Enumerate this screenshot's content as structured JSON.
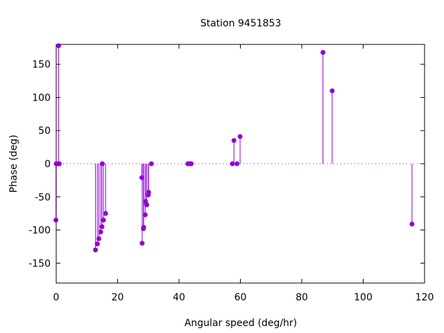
{
  "chart_data": {
    "type": "scatter",
    "style": "impulses-with-points",
    "title": "Station 9451853",
    "xlabel": "Angular speed (deg/hr)",
    "ylabel": "Phase (deg)",
    "xlim": [
      0,
      120
    ],
    "ylim": [
      -180,
      180
    ],
    "xticks": [
      0,
      20,
      40,
      60,
      80,
      100,
      120
    ],
    "yticks": [
      -150,
      -100,
      -50,
      0,
      50,
      100,
      150
    ],
    "zero_line": true,
    "grid": false,
    "color": "#9400d3",
    "series": [
      {
        "points": [
          {
            "x": -0.1,
            "y": -85
          },
          {
            "x": 0.0,
            "y": 0
          },
          {
            "x": 0.6,
            "y": 0
          },
          {
            "x": 0.8,
            "y": 178
          },
          {
            "x": 1.0,
            "y": 0
          },
          {
            "x": 12.8,
            "y": -130
          },
          {
            "x": 13.4,
            "y": -121
          },
          {
            "x": 13.9,
            "y": -113
          },
          {
            "x": 14.5,
            "y": -103
          },
          {
            "x": 14.9,
            "y": -95
          },
          {
            "x": 15.0,
            "y": 0
          },
          {
            "x": 15.4,
            "y": -85
          },
          {
            "x": 16.1,
            "y": -75
          },
          {
            "x": 27.9,
            "y": -21
          },
          {
            "x": 28.0,
            "y": -120
          },
          {
            "x": 28.4,
            "y": -98
          },
          {
            "x": 28.5,
            "y": -96
          },
          {
            "x": 29.0,
            "y": -77
          },
          {
            "x": 29.1,
            "y": -57
          },
          {
            "x": 29.5,
            "y": -62
          },
          {
            "x": 30.0,
            "y": -47
          },
          {
            "x": 30.1,
            "y": -43
          },
          {
            "x": 31.0,
            "y": 0
          },
          {
            "x": 42.9,
            "y": 0
          },
          {
            "x": 43.5,
            "y": 0
          },
          {
            "x": 44.0,
            "y": 0
          },
          {
            "x": 57.4,
            "y": 0
          },
          {
            "x": 57.9,
            "y": 35
          },
          {
            "x": 58.9,
            "y": 0
          },
          {
            "x": 59.9,
            "y": 41
          },
          {
            "x": 86.9,
            "y": 168
          },
          {
            "x": 89.9,
            "y": 110
          },
          {
            "x": 115.9,
            "y": -91
          }
        ]
      }
    ]
  }
}
